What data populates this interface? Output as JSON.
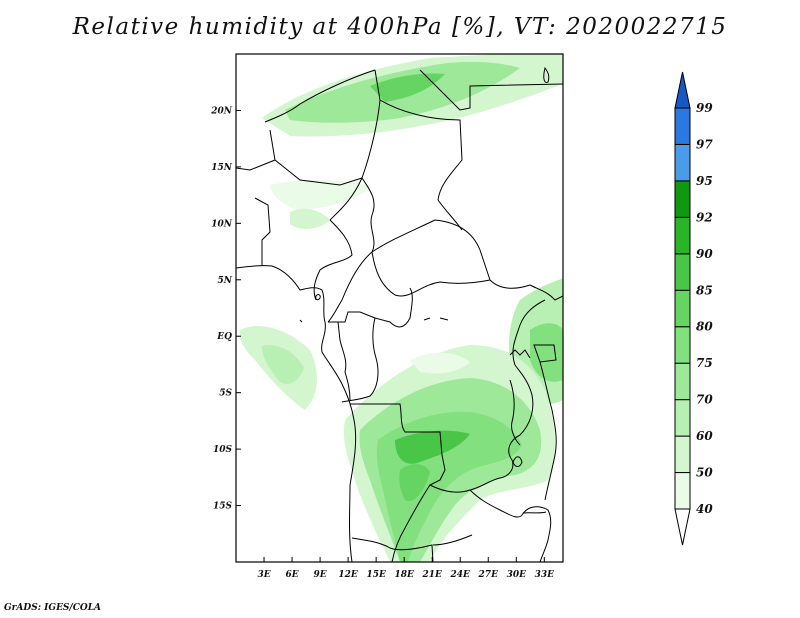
{
  "title": "Relative humidity at 400hPa [%], VT: 2020022715",
  "credit": "GrADS: IGES/COLA",
  "map": {
    "lat_labels": [
      "20N",
      "15N",
      "10N",
      "5N",
      "EQ",
      "5S",
      "10S",
      "15S"
    ],
    "lon_labels": [
      "3E",
      "6E",
      "9E",
      "12E",
      "15E",
      "18E",
      "21E",
      "24E",
      "27E",
      "30E",
      "33E"
    ],
    "lon_range": [
      0,
      35
    ],
    "lat_range": [
      -20,
      25
    ]
  },
  "colorbar": {
    "levels": [
      "40",
      "50",
      "60",
      "70",
      "75",
      "80",
      "85",
      "90",
      "92",
      "95",
      "97",
      "99"
    ],
    "colors": [
      "#ffffff",
      "#eafbe8",
      "#d3f6cf",
      "#b8f0b3",
      "#9ee89a",
      "#82e07f",
      "#65d463",
      "#49c547",
      "#2ab529",
      "#0f9810",
      "#4a9be8",
      "#2a78e0",
      "#1558c6"
    ]
  }
}
